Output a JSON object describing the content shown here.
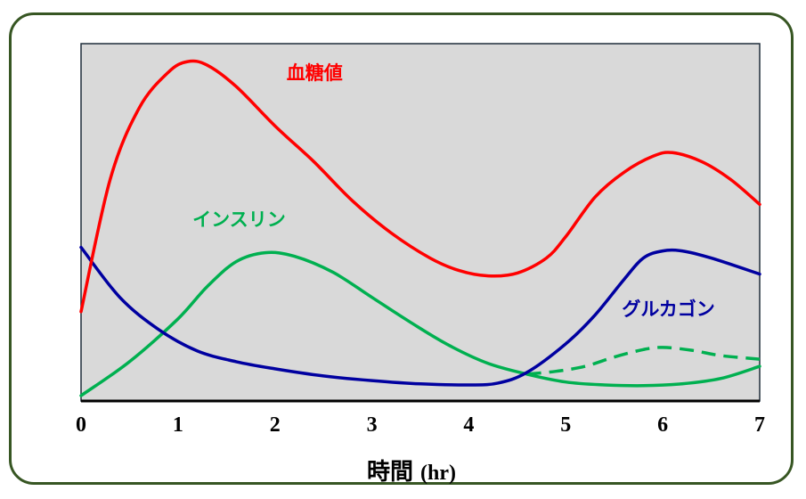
{
  "chart_data": {
    "type": "line",
    "xlabel": "時間",
    "xlabel_unit": "(hr)",
    "xlim": [
      0,
      7
    ],
    "x_ticks": [
      "0",
      "1",
      "2",
      "3",
      "4",
      "5",
      "6",
      "7"
    ],
    "ylim": [
      0,
      100
    ],
    "plot_background": "#d9d9d9",
    "series": [
      {
        "name": "血糖値",
        "color": "#ff0000",
        "x": [
          0,
          0.3,
          0.6,
          0.9,
          1.1,
          1.3,
          1.6,
          2.0,
          2.4,
          2.8,
          3.2,
          3.6,
          3.9,
          4.2,
          4.5,
          4.8,
          5.0,
          5.3,
          5.6,
          5.9,
          6.1,
          6.4,
          6.7,
          7.0
        ],
        "y": [
          25,
          62,
          82,
          92,
          95,
          94,
          88,
          77,
          67,
          56,
          47,
          40,
          36.5,
          35,
          35.8,
          40,
          46,
          57,
          64,
          68.5,
          69.5,
          67,
          62,
          55
        ]
      },
      {
        "name": "インスリン",
        "color": "#00b050",
        "x": [
          0,
          0.5,
          1.0,
          1.3,
          1.6,
          1.9,
          2.2,
          2.6,
          3.0,
          3.4,
          3.8,
          4.2,
          4.6,
          5.0,
          5.4,
          5.8,
          6.2,
          6.6,
          7.0
        ],
        "y": [
          1.5,
          11,
          23,
          32,
          39,
          41.5,
          40.5,
          36,
          29,
          22,
          15.5,
          10.5,
          7.5,
          5.3,
          4.5,
          4.3,
          4.8,
          6.3,
          9.7
        ]
      },
      {
        "name": "インスリン (破線)",
        "color": "#00b050",
        "dashed": true,
        "x": [
          4.6,
          4.9,
          5.2,
          5.5,
          5.8,
          6.0,
          6.3,
          6.6,
          7.0
        ],
        "y": [
          7.5,
          8.3,
          9.7,
          12.3,
          14.4,
          15,
          14.2,
          12.7,
          11.7
        ]
      },
      {
        "name": "グルカゴン",
        "color": "#0000a0",
        "x": [
          0,
          0.4,
          0.8,
          1.2,
          1.6,
          2.0,
          2.5,
          3.0,
          3.5,
          4.0,
          4.3,
          4.6,
          5.0,
          5.3,
          5.6,
          5.8,
          6.0,
          6.2,
          6.5,
          7.0
        ],
        "y": [
          43,
          29,
          20,
          14,
          11,
          9,
          7,
          5.7,
          4.8,
          4.5,
          5,
          8,
          16,
          24,
          34,
          40,
          42,
          42,
          40,
          35.5
        ]
      }
    ],
    "labels": [
      {
        "series": "血糖値",
        "text": "血糖値",
        "x": 2.12,
        "y": 90
      },
      {
        "series": "インスリン",
        "text": "インスリン",
        "x": 1.15,
        "y": 49
      },
      {
        "series": "グルカゴン",
        "text": "グルカゴン",
        "x": 5.58,
        "y": 24
      }
    ]
  }
}
